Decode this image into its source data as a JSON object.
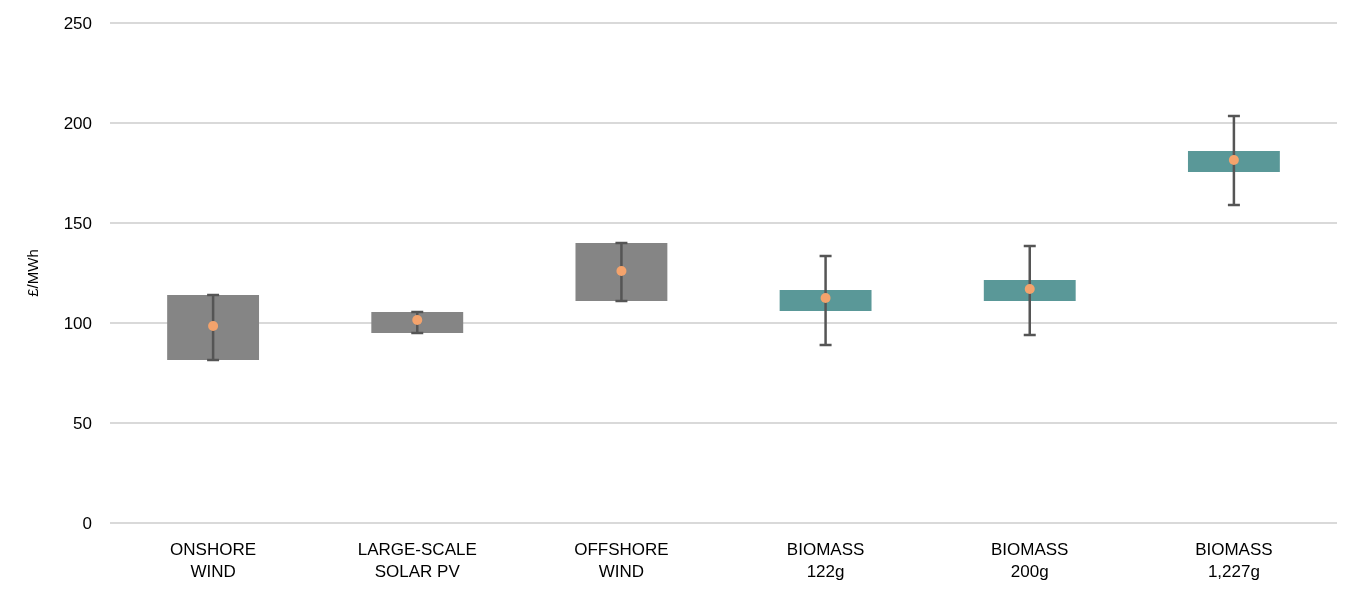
{
  "chart_data": {
    "type": "bar",
    "ylabel": "£/MWh",
    "categories": [
      "ONSHORE\nWIND",
      "LARGE-SCALE\nSOLAR PV",
      "OFFSHORE\nWIND",
      "BIOMASS\n122g",
      "BIOMASS\n200g",
      "BIOMASS\n1,227g"
    ],
    "series": [
      {
        "base": [
          81.5,
          95,
          111,
          106,
          111,
          175.5
        ],
        "values": [
          32.5,
          10.5,
          29,
          10.5,
          10.5,
          10.5
        ],
        "colors": [
          "#858585",
          "#858585",
          "#858585",
          "#5a9898",
          "#5a9898",
          "#5a9898"
        ]
      },
      {
        "type": "scatter",
        "color": "#f4a36c",
        "values": [
          98.5,
          101.5,
          126,
          112.5,
          117,
          181.5
        ],
        "errors": [
          [
            81.5,
            114
          ],
          [
            95,
            105.5
          ],
          [
            111,
            140
          ],
          [
            89,
            133.5
          ],
          [
            94,
            138.5
          ],
          [
            159,
            203.5
          ]
        ]
      }
    ],
    "ylim": [
      0,
      250
    ],
    "yticks": [
      0,
      50,
      100,
      150,
      200,
      250
    ],
    "grid": "y"
  }
}
